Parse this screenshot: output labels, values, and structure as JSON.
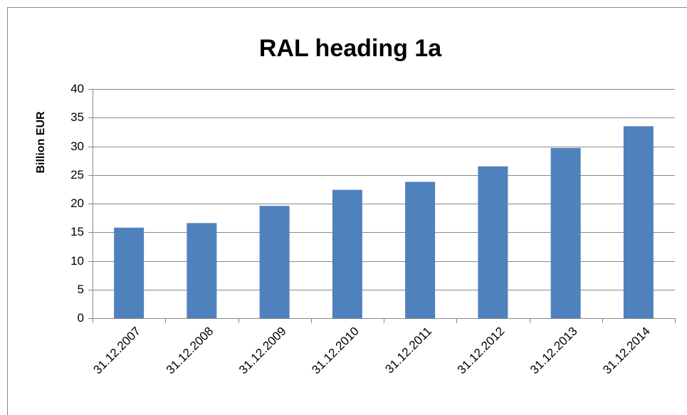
{
  "chart_data": {
    "type": "bar",
    "title": "RAL heading 1a",
    "y_label": "Billion EUR",
    "categories": [
      "31.12.2007",
      "31.12.2008",
      "31.12.2009",
      "31.12.2010",
      "31.12.2011",
      "31.12.2012",
      "31.12.2013",
      "31.12.2014"
    ],
    "values": [
      15.8,
      16.6,
      19.6,
      22.4,
      23.8,
      26.5,
      29.7,
      33.5
    ],
    "color": "#4f81bd",
    "ylim": [
      0,
      40
    ],
    "yticks": [
      0,
      5,
      10,
      15,
      20,
      25,
      30,
      35,
      40
    ],
    "grid": true
  }
}
